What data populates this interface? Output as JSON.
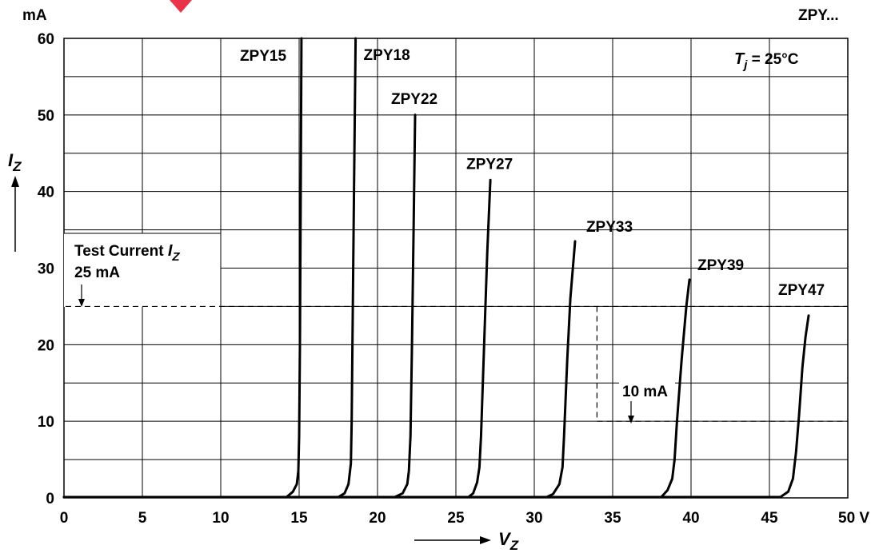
{
  "chart_data": {
    "type": "line",
    "title": "ZPY...",
    "x_axis": {
      "label": "V",
      "label_subscript": "Z",
      "unit": "V",
      "range": [
        0,
        50
      ],
      "ticks": [
        0,
        5,
        10,
        15,
        20,
        25,
        30,
        35,
        40,
        45,
        50
      ]
    },
    "y_axis": {
      "label": "I",
      "label_subscript": "Z",
      "unit": "mA",
      "range": [
        0,
        60
      ],
      "ticks": [
        0,
        10,
        20,
        30,
        40,
        50,
        60
      ]
    },
    "condition": {
      "prefix": "T",
      "subscript": "j",
      "text": " = 25°C"
    },
    "grid": true,
    "series": [
      {
        "name": "ZPY15",
        "points": [
          [
            14.2,
            0.1
          ],
          [
            14.6,
            0.8
          ],
          [
            14.85,
            1.8
          ],
          [
            14.95,
            3.5
          ],
          [
            15.0,
            8
          ],
          [
            15.05,
            20
          ],
          [
            15.1,
            40
          ],
          [
            15.15,
            60
          ]
        ]
      },
      {
        "name": "ZPY18",
        "points": [
          [
            17.5,
            0.1
          ],
          [
            17.9,
            0.6
          ],
          [
            18.15,
            1.8
          ],
          [
            18.3,
            4.5
          ],
          [
            18.35,
            10
          ],
          [
            18.45,
            30
          ],
          [
            18.55,
            50
          ],
          [
            18.6,
            60
          ]
        ]
      },
      {
        "name": "ZPY22",
        "points": [
          [
            21.1,
            0.1
          ],
          [
            21.6,
            0.6
          ],
          [
            21.9,
            1.8
          ],
          [
            22.0,
            3.5
          ],
          [
            22.1,
            8
          ],
          [
            22.2,
            20
          ],
          [
            22.3,
            35
          ],
          [
            22.4,
            50
          ]
        ]
      },
      {
        "name": "ZPY27",
        "points": [
          [
            25.8,
            0.1
          ],
          [
            26.1,
            0.6
          ],
          [
            26.35,
            2
          ],
          [
            26.5,
            4
          ],
          [
            26.6,
            8
          ],
          [
            26.8,
            20
          ],
          [
            27.0,
            32
          ],
          [
            27.2,
            41.5
          ]
        ]
      },
      {
        "name": "ZPY33",
        "points": [
          [
            30.8,
            0.1
          ],
          [
            31.2,
            0.5
          ],
          [
            31.6,
            1.8
          ],
          [
            31.8,
            4
          ],
          [
            31.9,
            8
          ],
          [
            32.1,
            18
          ],
          [
            32.3,
            26
          ],
          [
            32.6,
            33.5
          ]
        ]
      },
      {
        "name": "ZPY39",
        "points": [
          [
            38.1,
            0.1
          ],
          [
            38.5,
            1
          ],
          [
            38.8,
            2.5
          ],
          [
            38.95,
            5
          ],
          [
            39.1,
            10
          ],
          [
            39.4,
            18
          ],
          [
            39.7,
            25
          ],
          [
            39.9,
            28.5
          ]
        ]
      },
      {
        "name": "ZPY47",
        "points": [
          [
            45.7,
            0.1
          ],
          [
            46.2,
            0.8
          ],
          [
            46.5,
            2.5
          ],
          [
            46.7,
            6
          ],
          [
            46.9,
            11
          ],
          [
            47.1,
            17
          ],
          [
            47.3,
            21
          ],
          [
            47.5,
            23.8
          ]
        ]
      }
    ],
    "annotations": {
      "test_current_title": "Test Current",
      "test_current_symbol": "I",
      "test_current_subscript": "Z",
      "test_current_value": "25 mA",
      "test_current_level": 25,
      "delta_label": "10 mA",
      "delta_level": 10
    }
  }
}
